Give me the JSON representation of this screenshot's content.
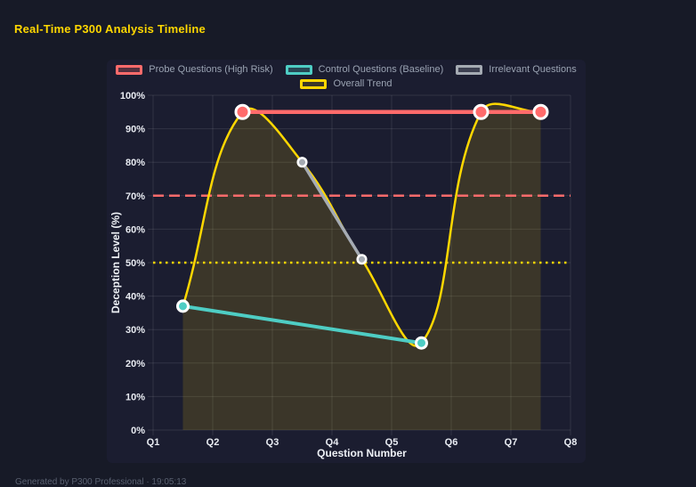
{
  "page": {
    "title": "Real-Time P300 Analysis Timeline",
    "footer": "Generated by P300 Professional · 19:05:13"
  },
  "colors": {
    "background": "#171a27",
    "panel": "#1b1d30",
    "grid": "rgba(255,255,255,0.10)",
    "tick_text": "#e9ecf2",
    "legend_text": "#9aa3b2",
    "title_text": "#ffd700",
    "point_border": "#ffffff",
    "probe": "#ff6b6b",
    "control": "#4ecdc4",
    "irrelevant": "#a5abb3",
    "trend": "#ffd700"
  },
  "chart_data": {
    "type": "line",
    "title": "",
    "xlabel": "Question Number",
    "ylabel": "Deception Level (%)",
    "x_ticks": [
      "Q1",
      "Q2",
      "Q3",
      "Q4",
      "Q5",
      "Q6",
      "Q7",
      "Q8"
    ],
    "x_range": [
      1,
      8
    ],
    "ylim": [
      0,
      100
    ],
    "y_tick_step": 10,
    "y_tick_suffix": "%",
    "grid": true,
    "legend_position": "top",
    "series": [
      {
        "name": "Probe Questions (High Risk)",
        "color": "#ff6b6b",
        "x": [
          2.5,
          6.5,
          7.5
        ],
        "values": [
          95,
          95,
          95
        ],
        "line_width": 4.5,
        "point_radius": 7.5,
        "point_border_width": 3,
        "smooth": false,
        "fill": false
      },
      {
        "name": "Control Questions (Baseline)",
        "color": "#4ecdc4",
        "x": [
          1.5,
          5.5
        ],
        "values": [
          37,
          26
        ],
        "line_width": 4,
        "point_radius": 6,
        "point_border_width": 3,
        "smooth": false,
        "fill": false
      },
      {
        "name": "Irrelevant Questions",
        "color": "#a5abb3",
        "x": [
          3.5,
          4.5
        ],
        "values": [
          80,
          51
        ],
        "line_width": 3.5,
        "point_radius": 4.8,
        "point_border_width": 2.5,
        "smooth": false,
        "fill": false
      },
      {
        "name": "Overall Trend",
        "color": "#ffd700",
        "x": [
          1.5,
          2.5,
          3.5,
          4.5,
          5.5,
          6.5,
          7.5
        ],
        "values": [
          37,
          95,
          80,
          51,
          26,
          95,
          95
        ],
        "line_width": 2.5,
        "point_radius": 0,
        "point_border_width": 0,
        "smooth": true,
        "fill": true,
        "fill_color": "rgba(255,215,0,0.14)"
      }
    ],
    "reference_lines": [
      {
        "y": 70,
        "color": "#ff6b6b",
        "style": "dashed"
      },
      {
        "y": 50,
        "color": "#ffd700",
        "style": "dotted"
      }
    ],
    "legend_rows": [
      [
        0,
        1,
        2
      ],
      [
        3
      ]
    ]
  }
}
